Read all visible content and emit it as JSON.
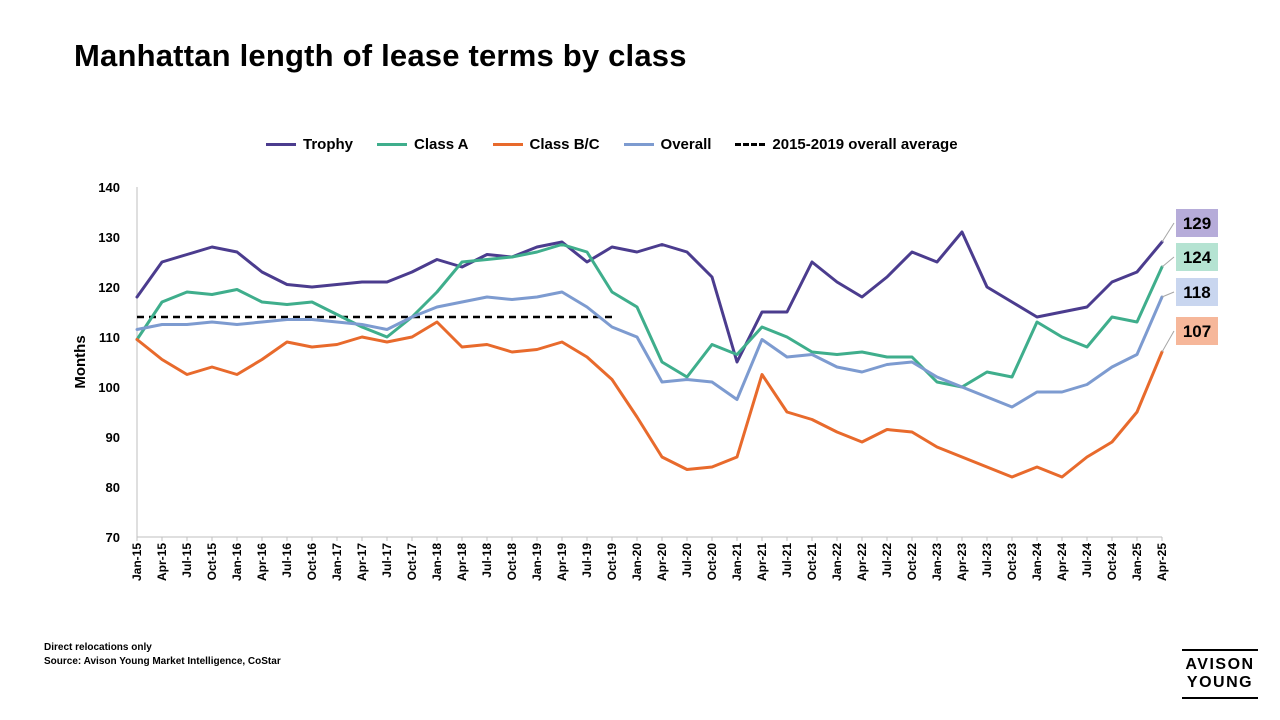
{
  "title": "Manhattan length of lease terms by class",
  "footnote": {
    "line1": "Direct relocations only",
    "line2": "Source: Avison Young Market Intelligence, CoStar"
  },
  "logo": {
    "line1": "AVISON",
    "line2": "YOUNG"
  },
  "chart_data": {
    "type": "line",
    "title": "Manhattan length of lease terms by class",
    "ylabel": "Months",
    "ylim": [
      70,
      140
    ],
    "yticks": [
      70,
      80,
      90,
      100,
      110,
      120,
      130,
      140
    ],
    "grid": false,
    "legend_position": "top",
    "x_tick_labels": [
      "Jan-15",
      "Apr-15",
      "Jul-15",
      "Oct-15",
      "Jan-16",
      "Apr-16",
      "Jul-16",
      "Oct-16",
      "Jan-17",
      "Apr-17",
      "Jul-17",
      "Oct-17",
      "Jan-18",
      "Apr-18",
      "Jul-18",
      "Oct-18",
      "Jan-19",
      "Apr-19",
      "Jul-19",
      "Oct-19",
      "Jan-20",
      "Apr-20",
      "Jul-20",
      "Oct-20",
      "Jan-21",
      "Apr-21",
      "Jul-21",
      "Oct-21",
      "Jan-22",
      "Apr-22",
      "Jul-22",
      "Oct-22",
      "Jan-23",
      "Apr-23",
      "Jul-23",
      "Oct-23",
      "Jan-24",
      "Apr-24",
      "Jul-24",
      "Oct-24",
      "Jan-25",
      "Apr-25"
    ],
    "quarters": [
      "Q1-15",
      "Q2-15",
      "Q3-15",
      "Q4-15",
      "Q1-16",
      "Q2-16",
      "Q3-16",
      "Q4-16",
      "Q1-17",
      "Q2-17",
      "Q3-17",
      "Q4-17",
      "Q1-18",
      "Q2-18",
      "Q3-18",
      "Q4-18",
      "Q1-19",
      "Q2-19",
      "Q3-19",
      "Q4-19",
      "Q1-20",
      "Q2-20",
      "Q3-20",
      "Q4-20",
      "Q1-21",
      "Q2-21",
      "Q3-21",
      "Q4-21",
      "Q1-22",
      "Q2-22",
      "Q3-22",
      "Q4-22",
      "Q1-23",
      "Q2-23",
      "Q3-23",
      "Q4-23",
      "Q1-24",
      "Q2-24",
      "Q3-24",
      "Q4-24",
      "Q1-25",
      "Q2-25"
    ],
    "series": [
      {
        "name": "Trophy",
        "color": "#4b3c8e",
        "values": [
          118,
          125,
          126.5,
          128,
          127,
          123,
          120.5,
          120,
          120.5,
          121,
          121,
          123,
          125.5,
          124,
          126.5,
          126,
          128,
          129,
          125,
          128,
          127,
          128.5,
          127,
          122,
          105,
          115,
          115,
          125,
          121,
          118,
          122,
          127,
          125,
          131,
          120,
          117,
          114,
          115,
          116,
          121,
          123,
          129
        ]
      },
      {
        "name": "Class A",
        "color": "#3fae8c",
        "values": [
          109.5,
          117,
          119,
          118.5,
          119.5,
          117,
          116.5,
          117,
          114.5,
          112,
          110,
          114,
          119,
          125,
          125.5,
          126,
          127,
          128.5,
          127,
          119,
          116,
          105,
          102,
          108.5,
          106.5,
          112,
          110,
          107,
          106.5,
          107,
          106,
          106,
          101,
          100,
          103,
          102,
          113,
          110,
          108,
          114,
          113,
          124
        ]
      },
      {
        "name": "Class B/C",
        "color": "#e86a2c",
        "values": [
          109.5,
          105.5,
          102.5,
          104,
          102.5,
          105.5,
          109,
          108,
          108.5,
          110,
          109,
          110,
          113,
          108,
          108.5,
          107,
          107.5,
          109,
          106,
          101.5,
          94,
          86,
          83.5,
          84,
          86,
          102.5,
          95,
          93.5,
          91,
          89,
          91.5,
          91,
          88,
          86,
          84,
          82,
          84,
          82,
          86,
          89,
          95,
          107
        ]
      },
      {
        "name": "Overall",
        "color": "#7d9bd0",
        "values": [
          111.5,
          112.5,
          112.5,
          113,
          112.5,
          113,
          113.5,
          113.5,
          113,
          112.5,
          111.5,
          114,
          116,
          117,
          118,
          117.5,
          118,
          119,
          116,
          112,
          110,
          101,
          101.5,
          101,
          97.5,
          109.5,
          106,
          106.5,
          104,
          103,
          104.5,
          105,
          102,
          100,
          98,
          96,
          99,
          99,
          100.5,
          104,
          106.5,
          118
        ]
      }
    ],
    "reference_line": {
      "name": "2015-2019 overall average",
      "value": 114,
      "start": "Q1-15",
      "end": "Q4-19",
      "style": "dashed",
      "color": "#000000"
    },
    "end_labels": [
      {
        "series": "Trophy",
        "label": "129",
        "color": "#b6acd9"
      },
      {
        "series": "Class A",
        "label": "124",
        "color": "#b5e3d2"
      },
      {
        "series": "Overall",
        "label": "118",
        "color": "#c9d6ef"
      },
      {
        "series": "Class B/C",
        "label": "107",
        "color": "#f6b79a"
      }
    ]
  }
}
